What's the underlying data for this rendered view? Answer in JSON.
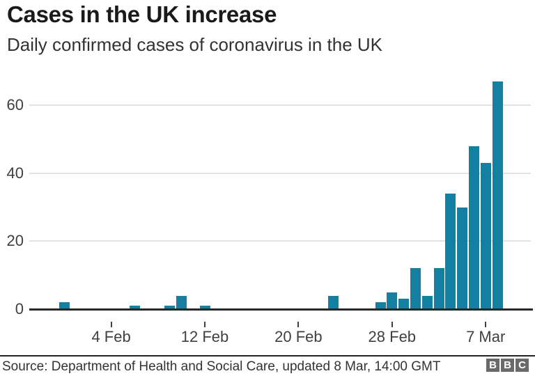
{
  "chart_data": {
    "type": "bar",
    "title": "Cases in the UK increase",
    "subtitle": "Daily confirmed cases of coronavirus in the UK",
    "xlabel": "",
    "ylabel": "",
    "ylim": [
      0,
      70
    ],
    "y_ticks": [
      0,
      20,
      40,
      60
    ],
    "grid": "horizontal-light",
    "legend": "none",
    "series": [
      {
        "date": "31 Jan",
        "day": 3,
        "value": 2
      },
      {
        "date": "6 Feb",
        "day": 9,
        "value": 1
      },
      {
        "date": "9 Feb",
        "day": 12,
        "value": 1
      },
      {
        "date": "10 Feb",
        "day": 13,
        "value": 4
      },
      {
        "date": "12 Feb",
        "day": 15,
        "value": 1
      },
      {
        "date": "23 Feb",
        "day": 26,
        "value": 4
      },
      {
        "date": "27 Feb",
        "day": 30,
        "value": 2
      },
      {
        "date": "28 Feb",
        "day": 31,
        "value": 5
      },
      {
        "date": "29 Feb",
        "day": 32,
        "value": 3
      },
      {
        "date": "1 Mar",
        "day": 33,
        "value": 12
      },
      {
        "date": "2 Mar",
        "day": 34,
        "value": 4
      },
      {
        "date": "3 Mar",
        "day": 35,
        "value": 12
      },
      {
        "date": "4 Mar",
        "day": 36,
        "value": 34
      },
      {
        "date": "5 Mar",
        "day": 37,
        "value": 30
      },
      {
        "date": "6 Mar",
        "day": 38,
        "value": 48
      },
      {
        "date": "7 Mar",
        "day": 39,
        "value": 43
      },
      {
        "date": "8 Mar",
        "day": 40,
        "value": 67
      }
    ],
    "x_ticks": [
      {
        "label": "4 Feb",
        "day": 7
      },
      {
        "label": "12 Feb",
        "day": 15
      },
      {
        "label": "20 Feb",
        "day": 23
      },
      {
        "label": "28 Feb",
        "day": 31
      },
      {
        "label": "7 Mar",
        "day": 39
      }
    ]
  },
  "footer": {
    "source": "Source: Department of Health and Social Care, updated 8 Mar, 14:00 GMT",
    "logo_letters": [
      "B",
      "B",
      "C"
    ]
  },
  "colors": {
    "bar": "#1380a1",
    "baseline": "#282828",
    "gridline": "#e2e2e2",
    "axis_text": "#404040",
    "tick": "#404040",
    "divider": "#222222",
    "logo_block": "#6a6a6a"
  }
}
